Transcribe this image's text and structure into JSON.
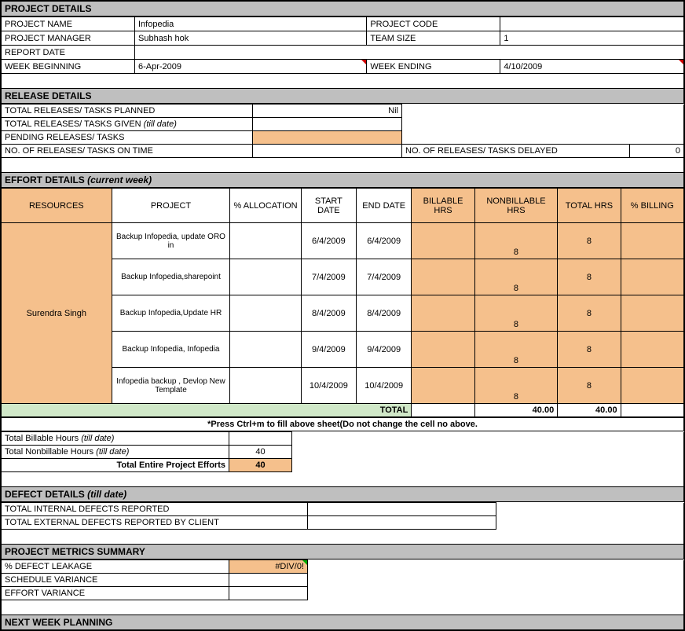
{
  "projectDetails": {
    "header": "PROJECT DETAILS",
    "rows": {
      "nameLbl": "PROJECT NAME",
      "nameVal": "Infopedia",
      "codeLbl": "PROJECT CODE",
      "codeVal": "",
      "mgrLbl": "PROJECT MANAGER",
      "mgrVal": "Subhash hok",
      "teamLbl": "TEAM SIZE",
      "teamVal": "1",
      "reportLbl": "REPORT DATE",
      "reportVal": "",
      "weekBegLbl": "WEEK BEGINNING",
      "weekBegVal": "6-Apr-2009",
      "weekEndLbl": "WEEK ENDING",
      "weekEndVal": "4/10/2009"
    }
  },
  "releaseDetails": {
    "header": "RELEASE DETAILS",
    "plannedLbl": "TOTAL RELEASES/ TASKS PLANNED",
    "plannedVal": "Nil",
    "givenLbl": "TOTAL RELEASES/ TASKS GIVEN ",
    "givenItal": "(till date)",
    "givenVal": "",
    "pendingLbl": "PENDING RELEASES/ TASKS",
    "pendingVal": "",
    "onTimeLbl": "NO. OF RELEASES/ TASKS ON TIME",
    "onTimeVal": "",
    "delayedLbl": "NO. OF RELEASES/ TASKS DELAYED",
    "delayedVal": "0"
  },
  "effortDetails": {
    "header": "EFFORT DETAILS ",
    "headerItal": "(current week)",
    "cols": {
      "resources": "RESOURCES",
      "project": "PROJECT",
      "alloc": "% ALLOCATION",
      "start": "START DATE",
      "end": "END DATE",
      "bill": "BILLABLE HRS",
      "nonbill": "NONBILLABLE HRS",
      "total": "TOTAL HRS",
      "pct": "% BILLING"
    },
    "resource": "Surendra Singh",
    "rows": [
      {
        "project": "Backup Infopedia, update ORO in",
        "start": "6/4/2009",
        "end": "6/4/2009",
        "nb": "8",
        "tot": "8"
      },
      {
        "project": "Backup Infopedia,sharepoint",
        "start": "7/4/2009",
        "end": "7/4/2009",
        "nb": "8",
        "tot": "8"
      },
      {
        "project": "Backup Infopedia,Update HR",
        "start": "8/4/2009",
        "end": "8/4/2009",
        "nb": "8",
        "tot": "8"
      },
      {
        "project": "Backup Infopedia, Infopedia",
        "start": "9/4/2009",
        "end": "9/4/2009",
        "nb": "8",
        "tot": "8"
      },
      {
        "project": "Infopedia backup , Devlop New Template",
        "start": "10/4/2009",
        "end": "10/4/2009",
        "nb": "8",
        "tot": "8"
      }
    ],
    "totalLbl": "TOTAL",
    "totalNB": "40.00",
    "totalTot": "40.00",
    "hint": "*Press Ctrl+m to fill above sheet(Do not change the cell no above."
  },
  "hours": {
    "billLbl": "Total Billable Hours ",
    "billItal": "(till date)",
    "billVal": "",
    "nbLbl": "Total Nonbillable Hours ",
    "nbItal": "(till date)",
    "nbVal": "40",
    "totLbl": "Total Entire Project Efforts",
    "totVal": "40"
  },
  "defect": {
    "header": "DEFECT DETAILS ",
    "headerItal": "(till date)",
    "intLbl": "TOTAL INTERNAL DEFECTS REPORTED",
    "extLbl": "TOTAL EXTERNAL DEFECTS REPORTED BY CLIENT"
  },
  "metrics": {
    "header": "PROJECT METRICS SUMMARY",
    "leakLbl": "% DEFECT LEAKAGE",
    "leakVal": "#DIV/0!",
    "schedLbl": "SCHEDULE VARIANCE",
    "effLbl": "EFFORT VARIANCE"
  },
  "next": {
    "header": "NEXT WEEK PLANNING"
  },
  "colors": {
    "sectionBg": "#bfbfbf",
    "orange": "#f5c08c",
    "green": "#d0e8c8"
  }
}
